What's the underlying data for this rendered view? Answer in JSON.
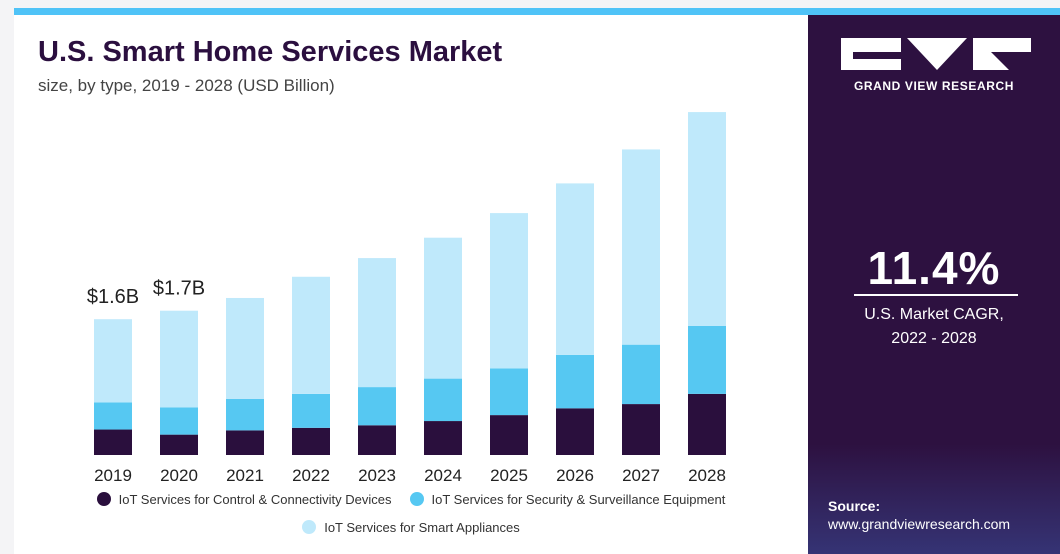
{
  "header": {
    "title": "U.S. Smart Home Services Market",
    "subtitle": "size, by type, 2019 - 2028 (USD Billion)"
  },
  "brand": {
    "name": "GRAND VIEW RESEARCH",
    "colors": {
      "panel": "#2d1140",
      "accent": "#4fc3f7"
    }
  },
  "cagr": {
    "value": "11.4%",
    "label_line1": "U.S. Market CAGR,",
    "label_line2": "2022 - 2028"
  },
  "source": {
    "label": "Source:",
    "url": "www.grandviewresearch.com"
  },
  "chart_data": {
    "type": "bar",
    "stacked": true,
    "categories": [
      "2019",
      "2020",
      "2021",
      "2022",
      "2023",
      "2024",
      "2025",
      "2026",
      "2027",
      "2028"
    ],
    "series": [
      {
        "name": "IoT Services for Control & Connectivity Devices",
        "color": "#2a0f3d",
        "values": [
          0.3,
          0.24,
          0.29,
          0.32,
          0.35,
          0.4,
          0.47,
          0.55,
          0.6,
          0.72
        ]
      },
      {
        "name": "IoT Services for Security & Surveillance Equipment",
        "color": "#56c8f2",
        "values": [
          0.32,
          0.32,
          0.37,
          0.4,
          0.45,
          0.5,
          0.55,
          0.63,
          0.7,
          0.8
        ]
      },
      {
        "name": "IoT Services for Smart Appliances",
        "color": "#bfe9fb",
        "values": [
          0.98,
          1.14,
          1.19,
          1.38,
          1.52,
          1.66,
          1.83,
          2.02,
          2.3,
          2.52
        ]
      }
    ],
    "data_labels": [
      {
        "category": "2019",
        "text": "$1.6B"
      },
      {
        "category": "2020",
        "text": "$1.7B"
      }
    ],
    "ylim": [
      0,
      4.1
    ],
    "grid": false,
    "legend_position": "bottom"
  }
}
